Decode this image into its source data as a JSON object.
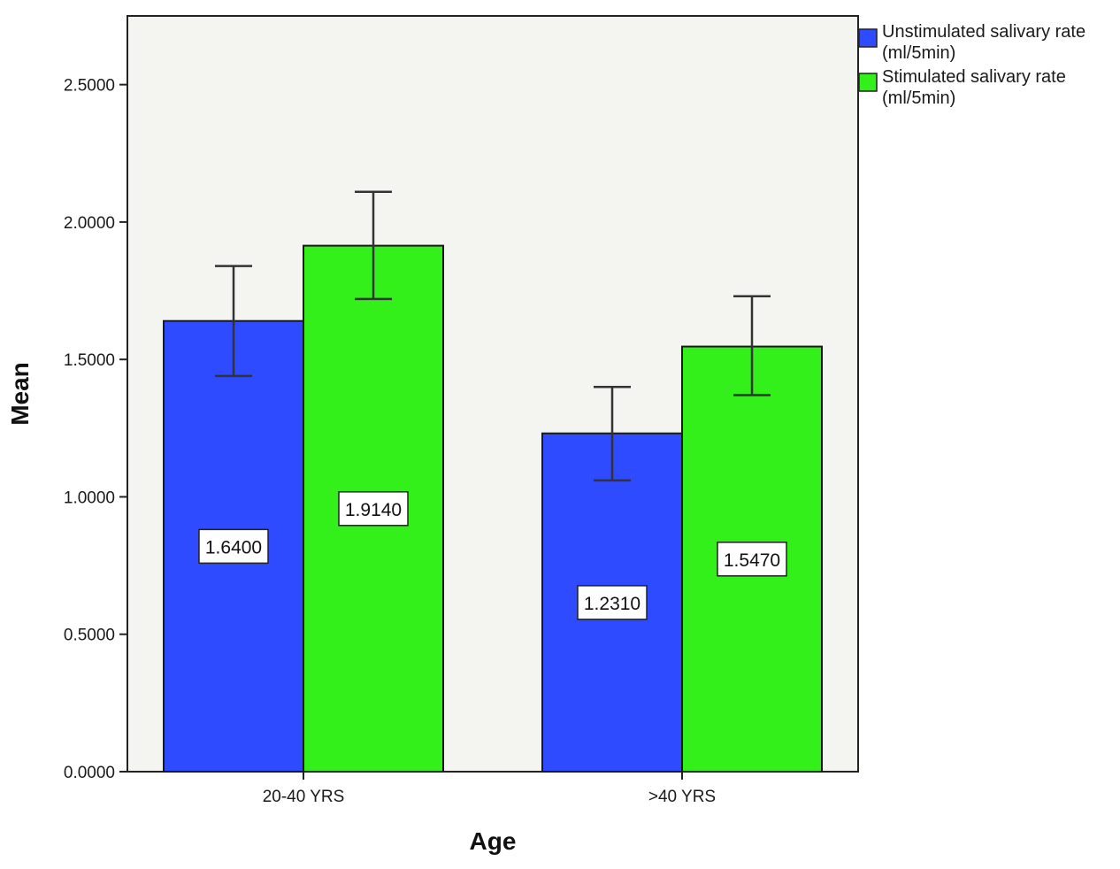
{
  "chart_data": {
    "type": "bar",
    "xlabel": "Age",
    "ylabel": "Mean",
    "categories": [
      "20-40 YRS",
      ">40 YRS"
    ],
    "ylim": [
      0,
      2.75
    ],
    "yticks": [
      0,
      0.5,
      1,
      1.5,
      2,
      2.5
    ],
    "ytick_labels": [
      "0.0000",
      "0.5000",
      "1.0000",
      "1.5000",
      "2.0000",
      "2.5000"
    ],
    "grid": false,
    "legend_position": "right-top, outside plot",
    "series": [
      {
        "name": "Unstimulated salivary rate (ml/5min)",
        "legend_lines": [
          "Unstimulated salivary rate",
          "(ml/5min)"
        ],
        "color": "#2f4bff",
        "values": [
          1.64,
          1.231
        ],
        "value_labels": [
          "1.6400",
          "1.2310"
        ],
        "error_low": [
          1.44,
          1.06
        ],
        "error_high": [
          1.84,
          1.4
        ]
      },
      {
        "name": "Stimulated salivary rate (ml/5min)",
        "legend_lines": [
          "Stimulated salivary rate",
          "(ml/5min)"
        ],
        "color": "#33f01a",
        "values": [
          1.914,
          1.547
        ],
        "value_labels": [
          "1.9140",
          "1.5470"
        ],
        "error_low": [
          1.72,
          1.37
        ],
        "error_high": [
          2.11,
          1.73
        ]
      }
    ]
  },
  "colors": {
    "plot_background": "#f4f4f0",
    "axis": "#222222",
    "bar_outline": "#1a1a1a"
  }
}
